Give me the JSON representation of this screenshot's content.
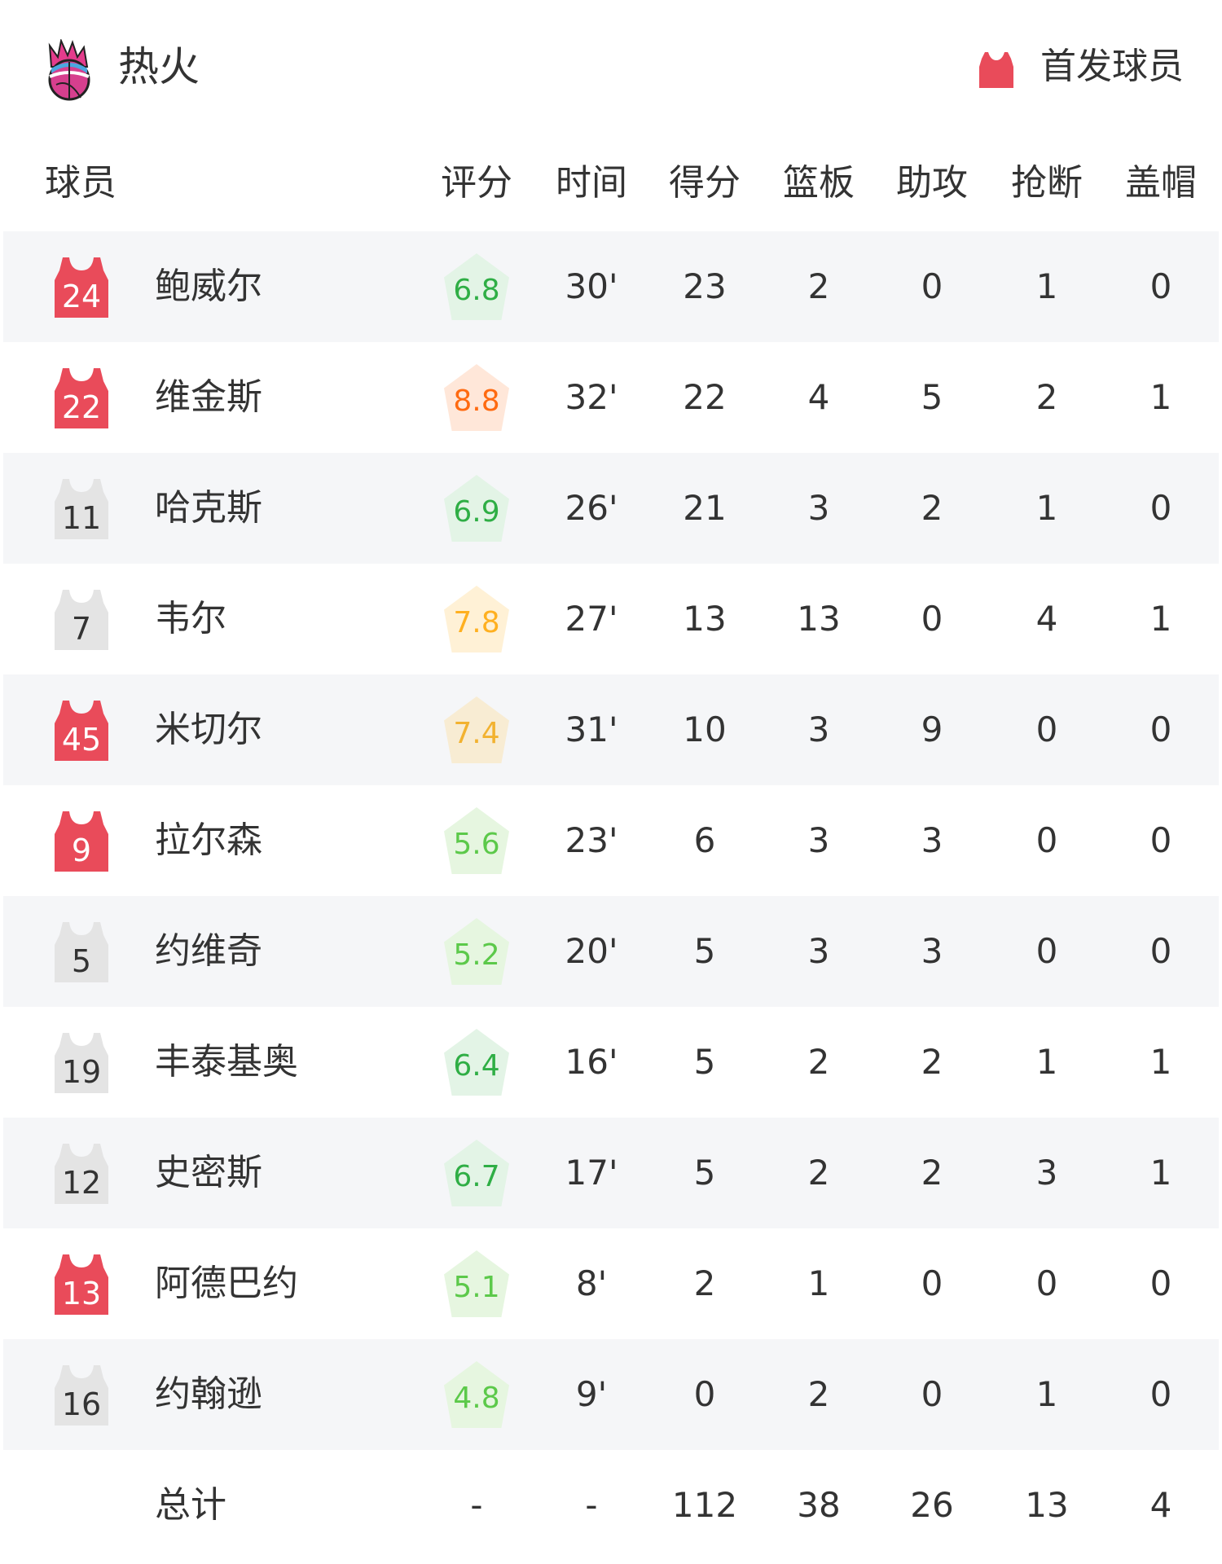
{
  "header": {
    "team_name": "热火",
    "team_logo_icon": "heat-basketball-logo",
    "starter_legend": {
      "icon": "jersey-icon",
      "label": "首发球员",
      "color": "#e94b5a"
    }
  },
  "columns": [
    "球员",
    "评分",
    "时间",
    "得分",
    "篮板",
    "助攻",
    "抢断",
    "盖帽"
  ],
  "colors": {
    "starter_jersey": "#e94b5a",
    "bench_jersey": "#e4e4e4",
    "row_stripe": "#f5f6f8"
  },
  "players": [
    {
      "number": "24",
      "name": "鲍威尔",
      "starter": true,
      "rating": "6.8",
      "rating_color": "#2fae45",
      "rating_bg": "#e3f4e6",
      "time": "30'",
      "pts": "23",
      "reb": "2",
      "ast": "0",
      "stl": "1",
      "blk": "0"
    },
    {
      "number": "22",
      "name": "维金斯",
      "starter": true,
      "rating": "8.8",
      "rating_color": "#ff6a10",
      "rating_bg": "#ffe7d9",
      "time": "32'",
      "pts": "22",
      "reb": "4",
      "ast": "5",
      "stl": "2",
      "blk": "1"
    },
    {
      "number": "11",
      "name": "哈克斯",
      "starter": false,
      "rating": "6.9",
      "rating_color": "#2fae45",
      "rating_bg": "#e3f4e6",
      "time": "26'",
      "pts": "21",
      "reb": "3",
      "ast": "2",
      "stl": "1",
      "blk": "0"
    },
    {
      "number": "7",
      "name": "韦尔",
      "starter": false,
      "rating": "7.8",
      "rating_color": "#ffb020",
      "rating_bg": "#fff1d6",
      "time": "27'",
      "pts": "13",
      "reb": "13",
      "ast": "0",
      "stl": "4",
      "blk": "1"
    },
    {
      "number": "45",
      "name": "米切尔",
      "starter": true,
      "rating": "7.4",
      "rating_color": "#f2b230",
      "rating_bg": "#f8ecd3",
      "time": "31'",
      "pts": "10",
      "reb": "3",
      "ast": "9",
      "stl": "0",
      "blk": "0"
    },
    {
      "number": "9",
      "name": "拉尔森",
      "starter": true,
      "rating": "5.6",
      "rating_color": "#5cc94a",
      "rating_bg": "#e6f6e0",
      "time": "23'",
      "pts": "6",
      "reb": "3",
      "ast": "3",
      "stl": "0",
      "blk": "0"
    },
    {
      "number": "5",
      "name": "约维奇",
      "starter": false,
      "rating": "5.2",
      "rating_color": "#5cc94a",
      "rating_bg": "#e6f6e0",
      "time": "20'",
      "pts": "5",
      "reb": "3",
      "ast": "3",
      "stl": "0",
      "blk": "0"
    },
    {
      "number": "19",
      "name": "丰泰基奥",
      "starter": false,
      "rating": "6.4",
      "rating_color": "#2fae45",
      "rating_bg": "#e3f4e6",
      "time": "16'",
      "pts": "5",
      "reb": "2",
      "ast": "2",
      "stl": "1",
      "blk": "1"
    },
    {
      "number": "12",
      "name": "史密斯",
      "starter": false,
      "rating": "6.7",
      "rating_color": "#2fae45",
      "rating_bg": "#e3f4e6",
      "time": "17'",
      "pts": "5",
      "reb": "2",
      "ast": "2",
      "stl": "3",
      "blk": "1"
    },
    {
      "number": "13",
      "name": "阿德巴约",
      "starter": true,
      "rating": "5.1",
      "rating_color": "#5cc94a",
      "rating_bg": "#e6f6e0",
      "time": "8'",
      "pts": "2",
      "reb": "1",
      "ast": "0",
      "stl": "0",
      "blk": "0"
    },
    {
      "number": "16",
      "name": "约翰逊",
      "starter": false,
      "rating": "4.8",
      "rating_color": "#5cc94a",
      "rating_bg": "#e6f6e0",
      "time": "9'",
      "pts": "0",
      "reb": "2",
      "ast": "0",
      "stl": "1",
      "blk": "0"
    }
  ],
  "totals": {
    "label": "总计",
    "rating": "-",
    "time": "-",
    "pts": "112",
    "reb": "38",
    "ast": "26",
    "stl": "13",
    "blk": "4"
  }
}
